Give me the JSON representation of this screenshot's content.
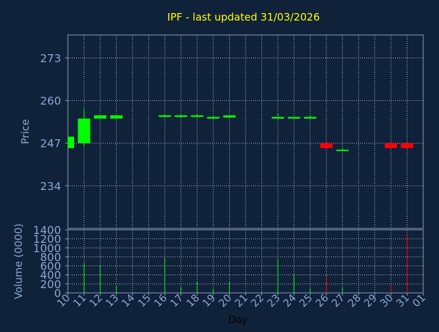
{
  "title": "IPF - last updated 31/03/2026",
  "colors": {
    "background": "#10213a",
    "axis": "#8aa0c0",
    "grid": "#b8c4d8",
    "tick_text": "#8aa8d0",
    "title": "#ffff00",
    "up": "#00ff00",
    "down": "#ff0000"
  },
  "chart_data": [
    {
      "type": "candlestick",
      "title": "IPF - last updated 31/03/2026",
      "ylabel": "Price",
      "ylim": [
        221,
        280
      ],
      "yticks": [
        "234",
        "247",
        "260",
        "273"
      ],
      "ytick_values": [
        234,
        247,
        260,
        273
      ],
      "grid": true,
      "x_positions": [
        0,
        1,
        2,
        3,
        6,
        7,
        8,
        9,
        10,
        13,
        14,
        15,
        16,
        17,
        20,
        21
      ],
      "candles": [
        {
          "o": 245.5,
          "h": 249.0,
          "l": 245.5,
          "c": 249.0
        },
        {
          "o": 247.0,
          "h": 257.5,
          "l": 246.0,
          "c": 254.5
        },
        {
          "o": 254.5,
          "h": 255.5,
          "l": 254.5,
          "c": 255.5
        },
        {
          "o": 254.5,
          "h": 255.5,
          "l": 254.5,
          "c": 255.5
        },
        {
          "o": 255.0,
          "h": 255.8,
          "l": 255.0,
          "c": 255.5
        },
        {
          "o": 255.0,
          "h": 255.8,
          "l": 254.8,
          "c": 255.5
        },
        {
          "o": 255.0,
          "h": 255.8,
          "l": 255.0,
          "c": 255.5
        },
        {
          "o": 254.5,
          "h": 255.5,
          "l": 254.5,
          "c": 255.0
        },
        {
          "o": 254.8,
          "h": 255.5,
          "l": 254.8,
          "c": 255.5
        },
        {
          "o": 254.5,
          "h": 256.0,
          "l": 254.5,
          "c": 255.0
        },
        {
          "o": 254.5,
          "h": 255.0,
          "l": 254.5,
          "c": 255.0
        },
        {
          "o": 254.5,
          "h": 255.5,
          "l": 254.5,
          "c": 255.0
        },
        {
          "o": 247.0,
          "h": 247.0,
          "l": 245.5,
          "c": 245.5
        },
        {
          "o": 245.0,
          "h": 245.5,
          "l": 244.8,
          "c": 245.0
        },
        {
          "o": 247.0,
          "h": 247.0,
          "l": 245.5,
          "c": 245.5
        },
        {
          "o": 247.0,
          "h": 247.0,
          "l": 245.5,
          "c": 245.5
        }
      ]
    },
    {
      "type": "bar",
      "ylabel": "Volume (0000)",
      "xlabel": "Day",
      "ylim": [
        0,
        1400
      ],
      "yticks": [
        "0",
        "200",
        "400",
        "600",
        "800",
        "1000",
        "1200",
        "1400"
      ],
      "ytick_values": [
        0,
        200,
        400,
        600,
        800,
        1000,
        1200,
        1400
      ],
      "categories": [
        "10",
        "11",
        "12",
        "13",
        "14",
        "15",
        "16",
        "17",
        "18",
        "19",
        "20",
        "21",
        "22",
        "23",
        "24",
        "25",
        "26",
        "27",
        "28",
        "29",
        "30",
        "31",
        "01"
      ],
      "bars": [
        {
          "x": 1,
          "value": 650,
          "dir": "up"
        },
        {
          "x": 2,
          "value": 620,
          "dir": "up"
        },
        {
          "x": 3,
          "value": 150,
          "dir": "up"
        },
        {
          "x": 6,
          "value": 780,
          "dir": "up"
        },
        {
          "x": 7,
          "value": 130,
          "dir": "up"
        },
        {
          "x": 8,
          "value": 250,
          "dir": "up"
        },
        {
          "x": 9,
          "value": 90,
          "dir": "up"
        },
        {
          "x": 10,
          "value": 250,
          "dir": "up"
        },
        {
          "x": 13,
          "value": 750,
          "dir": "up"
        },
        {
          "x": 14,
          "value": 420,
          "dir": "up"
        },
        {
          "x": 15,
          "value": 100,
          "dir": "up"
        },
        {
          "x": 16,
          "value": 380,
          "dir": "down"
        },
        {
          "x": 17,
          "value": 130,
          "dir": "up"
        },
        {
          "x": 20,
          "value": 150,
          "dir": "down"
        },
        {
          "x": 21,
          "value": 1300,
          "dir": "down"
        }
      ]
    }
  ]
}
